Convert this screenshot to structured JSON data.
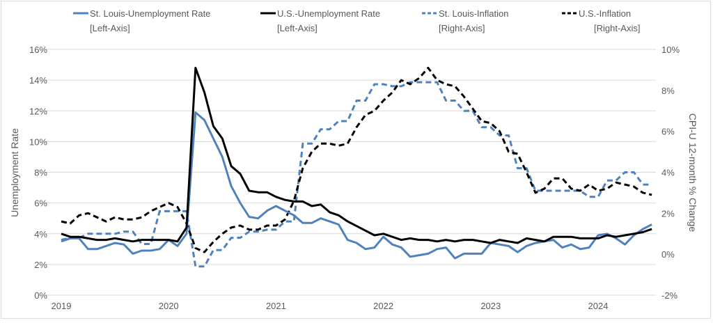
{
  "chart_data": {
    "type": "line",
    "title": "",
    "xlabel": "",
    "ylabel": "Unemployment Rate",
    "y2label": "CPI-U 12-month % Change",
    "ylim": [
      0,
      16
    ],
    "y2lim": [
      -2,
      10
    ],
    "yticks": [
      "0%",
      "2%",
      "4%",
      "6%",
      "8%",
      "10%",
      "12%",
      "14%",
      "16%"
    ],
    "y2ticks": [
      "-2%",
      "0%",
      "2%",
      "4%",
      "6%",
      "8%",
      "10%"
    ],
    "xticks": [
      "2019",
      "2020",
      "2021",
      "2022",
      "2023",
      "2024"
    ],
    "x_start": "2019-01",
    "x_frequency": "monthly",
    "grid": true,
    "legend_position": "top",
    "series": [
      {
        "name": "St. Louis-Unemployment Rate",
        "axis_note": "[Left-Axis]",
        "axis": "left",
        "color": "#4f81bd",
        "dash": false,
        "values": [
          3.5,
          3.7,
          3.7,
          3.0,
          3.0,
          3.2,
          3.4,
          3.3,
          2.7,
          2.9,
          2.9,
          3.0,
          3.6,
          3.2,
          4.0,
          11.9,
          11.4,
          10.2,
          9.0,
          7.1,
          6.0,
          5.1,
          5.0,
          5.5,
          5.8,
          5.5,
          5.2,
          4.7,
          4.7,
          5.0,
          4.8,
          4.6,
          3.6,
          3.4,
          3.0,
          3.1,
          3.8,
          3.3,
          3.1,
          2.5,
          2.6,
          2.7,
          3.0,
          3.1,
          2.4,
          2.7,
          2.7,
          2.7,
          3.4,
          3.3,
          3.2,
          2.8,
          3.2,
          3.4,
          3.5,
          3.6,
          3.1,
          3.3,
          3.0,
          3.1,
          3.9,
          4.0,
          3.7,
          3.3,
          3.9,
          4.3,
          4.6
        ]
      },
      {
        "name": "U.S.-Unemployment Rate",
        "axis_note": "[Left-Axis]",
        "axis": "left",
        "color": "#000000",
        "dash": false,
        "values": [
          4.0,
          3.8,
          3.8,
          3.7,
          3.6,
          3.6,
          3.7,
          3.6,
          3.5,
          3.6,
          3.6,
          3.6,
          3.6,
          3.5,
          4.4,
          14.8,
          13.2,
          11.0,
          10.2,
          8.4,
          7.9,
          6.8,
          6.7,
          6.7,
          6.4,
          6.2,
          6.1,
          6.1,
          5.8,
          5.9,
          5.4,
          5.2,
          4.8,
          4.5,
          4.2,
          3.9,
          4.0,
          3.8,
          3.6,
          3.7,
          3.6,
          3.6,
          3.5,
          3.6,
          3.5,
          3.6,
          3.6,
          3.5,
          3.4,
          3.6,
          3.5,
          3.4,
          3.7,
          3.6,
          3.5,
          3.8,
          3.8,
          3.8,
          3.7,
          3.7,
          3.7,
          3.9,
          3.8,
          3.9,
          4.0,
          4.1,
          4.3
        ]
      },
      {
        "name": "St. Louis-Inflation",
        "axis_note": "[Right-Axis]",
        "axis": "right",
        "color": "#4f81bd",
        "dash": true,
        "values": [
          0.7,
          0.8,
          0.8,
          1.0,
          1.0,
          1.0,
          1.0,
          1.1,
          1.1,
          0.5,
          0.5,
          2.1,
          2.1,
          2.1,
          2.1,
          -0.6,
          -0.6,
          0.2,
          0.2,
          0.8,
          0.8,
          1.1,
          1.1,
          1.2,
          1.2,
          1.6,
          1.6,
          5.4,
          5.4,
          6.1,
          6.1,
          6.5,
          6.5,
          7.5,
          7.5,
          8.3,
          8.3,
          8.2,
          8.2,
          8.4,
          8.4,
          8.4,
          8.4,
          7.5,
          7.5,
          7.0,
          7.0,
          6.2,
          6.2,
          5.8,
          5.8,
          4.2,
          4.2,
          3.1,
          3.1,
          3.1,
          3.1,
          3.1,
          3.1,
          2.8,
          2.8,
          3.6,
          3.6,
          4.0,
          4.0,
          3.4,
          3.4
        ]
      },
      {
        "name": "U.S.-Inflation",
        "axis_note": "[Right-Axis]",
        "axis": "right",
        "color": "#000000",
        "dash": true,
        "values": [
          1.6,
          1.5,
          1.9,
          2.0,
          1.8,
          1.6,
          1.8,
          1.7,
          1.7,
          1.8,
          2.1,
          2.3,
          2.5,
          2.3,
          1.5,
          0.3,
          0.1,
          0.6,
          1.0,
          1.3,
          1.4,
          1.2,
          1.2,
          1.4,
          1.4,
          1.7,
          2.6,
          4.2,
          5.0,
          5.4,
          5.4,
          5.3,
          5.4,
          6.2,
          6.8,
          7.0,
          7.5,
          7.9,
          8.5,
          8.3,
          8.6,
          9.1,
          8.5,
          8.3,
          8.2,
          7.7,
          7.1,
          6.5,
          6.4,
          6.0,
          5.0,
          4.9,
          4.0,
          3.0,
          3.2,
          3.7,
          3.7,
          3.2,
          3.1,
          3.4,
          3.1,
          3.2,
          3.5,
          3.4,
          3.3,
          3.0,
          2.9
        ]
      }
    ]
  }
}
